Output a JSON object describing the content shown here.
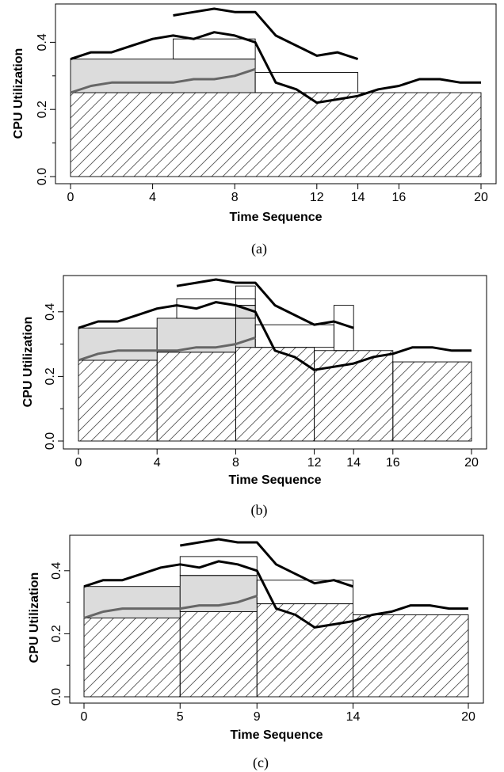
{
  "chart_data": [
    {
      "type": "line",
      "panel_label": "(a)",
      "xlabel": "Time Sequence",
      "ylabel": "CPU Utilization",
      "xlim": [
        0,
        20
      ],
      "ylim": [
        0,
        0.5
      ],
      "xticks": [
        0,
        4,
        8,
        12,
        14,
        16,
        20
      ],
      "yticks": [
        0.0,
        0.2,
        0.4
      ],
      "ytick_labels": [
        "0.0",
        "0.2",
        "0.4"
      ],
      "grid": false,
      "series": [
        {
          "x": [
            0,
            1,
            2,
            3,
            4,
            5,
            6,
            7,
            8,
            9,
            10,
            11,
            12,
            13,
            14,
            15,
            16,
            17,
            18,
            19,
            20
          ],
          "values": [
            0.35,
            0.37,
            0.37,
            0.39,
            0.41,
            0.42,
            0.41,
            0.43,
            0.42,
            0.4,
            0.28,
            0.26,
            0.22,
            0.23,
            0.24,
            0.26,
            0.27,
            0.29,
            0.29,
            0.28,
            0.28
          ],
          "color": "#000000"
        },
        {
          "x": [
            0,
            1,
            2,
            3,
            4,
            5,
            6,
            7,
            8,
            9
          ],
          "values": [
            0.25,
            0.27,
            0.28,
            0.28,
            0.28,
            0.28,
            0.29,
            0.29,
            0.3,
            0.32
          ],
          "color": "#666666"
        },
        {
          "x": [
            5,
            6,
            7,
            8,
            9,
            10,
            11,
            12,
            13,
            14
          ],
          "values": [
            0.48,
            0.49,
            0.5,
            0.49,
            0.49,
            0.42,
            0.39,
            0.36,
            0.37,
            0.35
          ],
          "color": "#000000"
        }
      ],
      "intervals": [
        {
          "type": "hatched",
          "x0": 0,
          "x1": 20,
          "y": 0.25
        },
        {
          "type": "gray",
          "x0": 0,
          "x1": 9,
          "y0": 0.25,
          "y1": 0.35
        },
        {
          "type": "open",
          "x0": 5,
          "x1": 9,
          "y0": 0.35,
          "y1": 0.41
        },
        {
          "type": "open",
          "x0": 9,
          "x1": 14,
          "y0": 0.25,
          "y1": 0.31
        }
      ]
    },
    {
      "type": "line",
      "panel_label": "(b)",
      "xlabel": "Time Sequence",
      "ylabel": "CPU Utilization",
      "xlim": [
        0,
        20
      ],
      "ylim": [
        0,
        0.5
      ],
      "xticks": [
        0,
        4,
        8,
        12,
        14,
        16,
        20
      ],
      "yticks": [
        0.0,
        0.2,
        0.4
      ],
      "ytick_labels": [
        "0.0",
        "0.2",
        "0.4"
      ],
      "grid": false,
      "series": [
        {
          "x": [
            0,
            1,
            2,
            3,
            4,
            5,
            6,
            7,
            8,
            9,
            10,
            11,
            12,
            13,
            14,
            15,
            16,
            17,
            18,
            19,
            20
          ],
          "values": [
            0.35,
            0.37,
            0.37,
            0.39,
            0.41,
            0.42,
            0.41,
            0.43,
            0.42,
            0.4,
            0.28,
            0.26,
            0.22,
            0.23,
            0.24,
            0.26,
            0.27,
            0.29,
            0.29,
            0.28,
            0.28
          ],
          "color": "#000000"
        },
        {
          "x": [
            0,
            1,
            2,
            3,
            4,
            5,
            6,
            7,
            8,
            9
          ],
          "values": [
            0.25,
            0.27,
            0.28,
            0.28,
            0.28,
            0.28,
            0.29,
            0.29,
            0.3,
            0.32
          ],
          "color": "#666666"
        },
        {
          "x": [
            5,
            6,
            7,
            8,
            9,
            10,
            11,
            12,
            13,
            14
          ],
          "values": [
            0.48,
            0.49,
            0.5,
            0.49,
            0.49,
            0.42,
            0.39,
            0.36,
            0.37,
            0.35
          ],
          "color": "#000000"
        }
      ],
      "intervals": [
        {
          "type": "hatched",
          "x0": 0,
          "x1": 4,
          "y": 0.25
        },
        {
          "type": "hatched",
          "x0": 4,
          "x1": 8,
          "y": 0.275
        },
        {
          "type": "hatched",
          "x0": 8,
          "x1": 12,
          "y": 0.29
        },
        {
          "type": "hatched",
          "x0": 12,
          "x1": 16,
          "y": 0.28
        },
        {
          "type": "hatched",
          "x0": 16,
          "x1": 20,
          "y": 0.245
        },
        {
          "type": "gray",
          "x0": 0,
          "x1": 4,
          "y0": 0.25,
          "y1": 0.35
        },
        {
          "type": "gray",
          "x0": 4,
          "x1": 8,
          "y0": 0.275,
          "y1": 0.38
        },
        {
          "type": "gray",
          "x0": 8,
          "x1": 9,
          "y0": 0.29,
          "y1": 0.42
        },
        {
          "type": "open",
          "x0": 5,
          "x1": 9,
          "y0": 0.38,
          "y1": 0.44
        },
        {
          "type": "open",
          "x0": 8,
          "x1": 9,
          "y0": 0.42,
          "y1": 0.48
        },
        {
          "type": "open",
          "x0": 9,
          "x1": 13,
          "y0": 0.29,
          "y1": 0.36
        },
        {
          "type": "open",
          "x0": 13,
          "x1": 14,
          "y0": 0.28,
          "y1": 0.42
        }
      ]
    },
    {
      "type": "line",
      "panel_label": "(c)",
      "xlabel": "Time Sequence",
      "ylabel": "CPU Utilization",
      "xlim": [
        0,
        20
      ],
      "ylim": [
        0,
        0.5
      ],
      "xticks": [
        0,
        5,
        9,
        14,
        20
      ],
      "yticks": [
        0.0,
        0.2,
        0.4
      ],
      "ytick_labels": [
        "0.0",
        "0.2",
        "0.4"
      ],
      "grid": false,
      "series": [
        {
          "x": [
            0,
            1,
            2,
            3,
            4,
            5,
            6,
            7,
            8,
            9,
            10,
            11,
            12,
            13,
            14,
            15,
            16,
            17,
            18,
            19,
            20
          ],
          "values": [
            0.35,
            0.37,
            0.37,
            0.39,
            0.41,
            0.42,
            0.41,
            0.43,
            0.42,
            0.4,
            0.28,
            0.26,
            0.22,
            0.23,
            0.24,
            0.26,
            0.27,
            0.29,
            0.29,
            0.28,
            0.28
          ],
          "color": "#000000"
        },
        {
          "x": [
            0,
            1,
            2,
            3,
            4,
            5,
            6,
            7,
            8,
            9
          ],
          "values": [
            0.25,
            0.27,
            0.28,
            0.28,
            0.28,
            0.28,
            0.29,
            0.29,
            0.3,
            0.32
          ],
          "color": "#666666"
        },
        {
          "x": [
            5,
            6,
            7,
            8,
            9,
            10,
            11,
            12,
            13,
            14
          ],
          "values": [
            0.48,
            0.49,
            0.5,
            0.49,
            0.49,
            0.42,
            0.39,
            0.36,
            0.37,
            0.35
          ],
          "color": "#000000"
        }
      ],
      "intervals": [
        {
          "type": "hatched",
          "x0": 0,
          "x1": 5,
          "y": 0.25
        },
        {
          "type": "hatched",
          "x0": 5,
          "x1": 9,
          "y": 0.27
        },
        {
          "type": "hatched",
          "x0": 9,
          "x1": 14,
          "y": 0.295
        },
        {
          "type": "hatched",
          "x0": 14,
          "x1": 20,
          "y": 0.26
        },
        {
          "type": "gray",
          "x0": 0,
          "x1": 5,
          "y0": 0.25,
          "y1": 0.35
        },
        {
          "type": "gray",
          "x0": 5,
          "x1": 9,
          "y0": 0.27,
          "y1": 0.385
        },
        {
          "type": "open",
          "x0": 5,
          "x1": 9,
          "y0": 0.385,
          "y1": 0.445
        },
        {
          "type": "open",
          "x0": 9,
          "x1": 14,
          "y0": 0.295,
          "y1": 0.37
        }
      ]
    }
  ],
  "colors": {
    "axis": "#000000",
    "gray_fill": "#dcdcdc",
    "hatch": "#555555",
    "gray_line": "#666666"
  }
}
